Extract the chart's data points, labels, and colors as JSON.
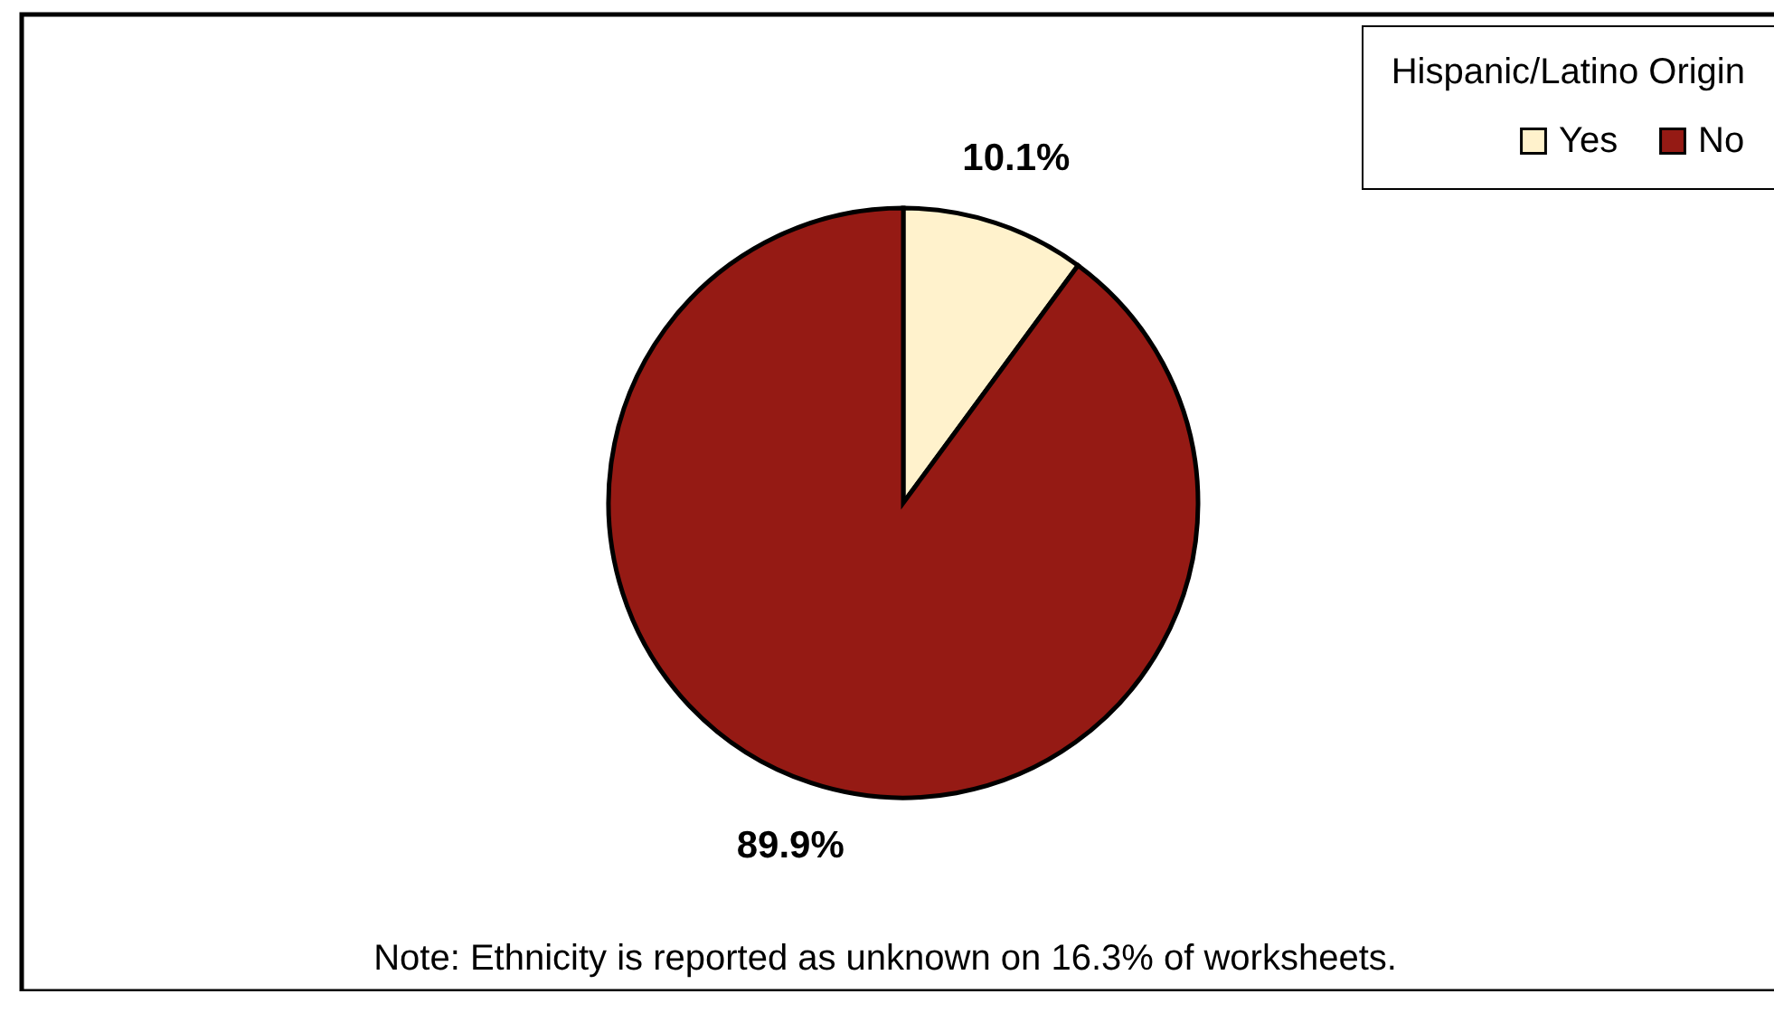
{
  "chart_data": {
    "type": "pie",
    "legend_title": "Hispanic/Latino Origin",
    "legend": "top right",
    "categories": [
      "Yes",
      "No"
    ],
    "values": [
      10.1,
      89.9
    ],
    "colors": [
      "#fff2cc",
      "#951a14"
    ],
    "value_labels": [
      "10.1%",
      "89.9%"
    ],
    "annotations": [
      "Note: Ethnicity is reported as unknown on 16.3% of worksheets."
    ]
  }
}
